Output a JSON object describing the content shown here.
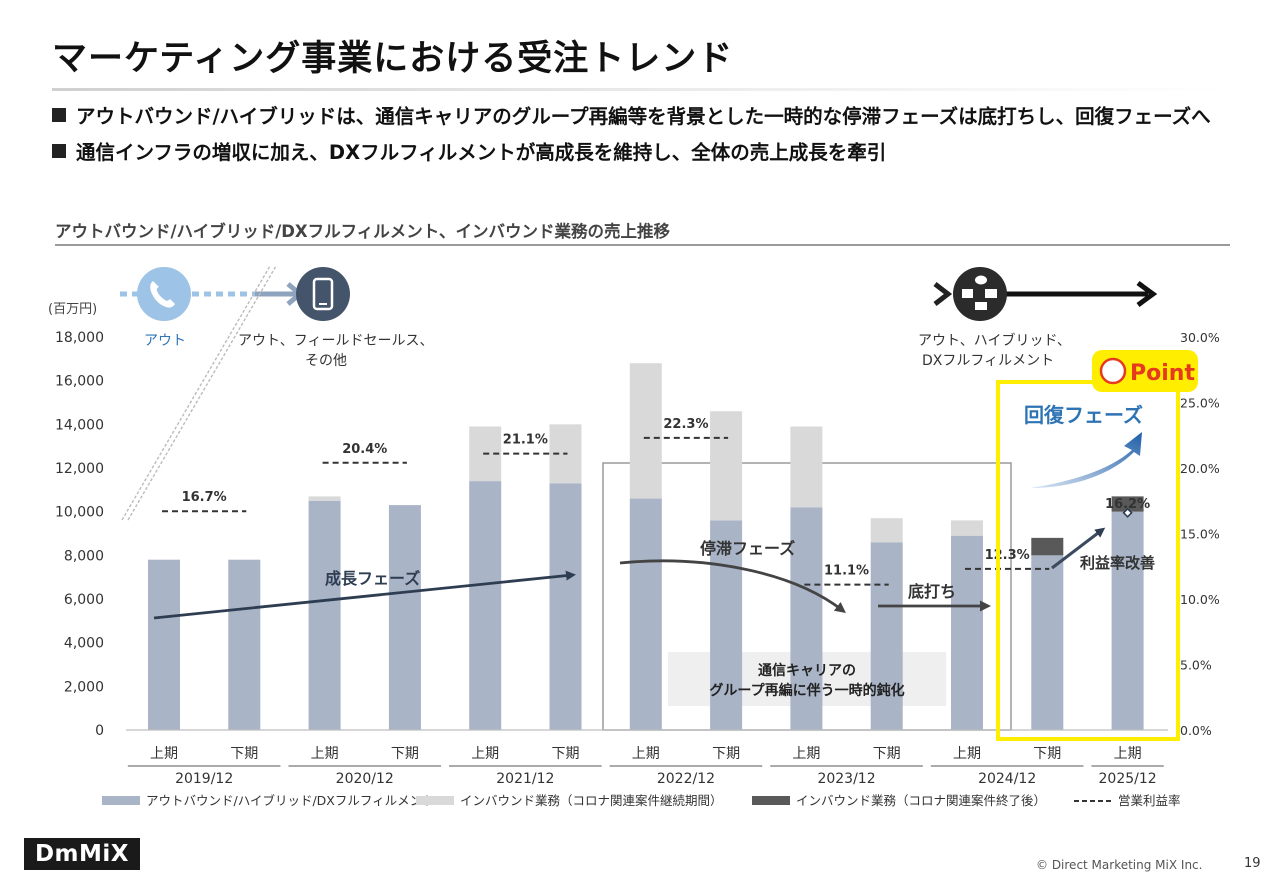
{
  "slide": {
    "title": "マーケティング事業における受注トレンド",
    "bullets": [
      "アウトバウンド/ハイブリッドは、通信キャリアのグループ再編等を背景とした一時的な停滞フェーズは底打ちし、回復フェーズへ",
      "通信インフラの増収に加え、DXフルフィルメントが高成長を維持し、全体の売上成長を牽引"
    ],
    "chart_heading": "アウトバウンド/ハイブリッド/DXフルフィルメント、インバウンド業務の売上推移",
    "logo_text": "DmMiX",
    "copyright": "© Direct Marketing MiX Inc.",
    "page_number": "19"
  },
  "timeline": {
    "labels": [
      "アウト",
      "アウト、フィールドセールス、\nその他",
      "アウト、ハイブリッド、\nDXフルフィルメント"
    ],
    "icons": [
      "phone-icon",
      "smartphone-icon",
      "omnichannel-icon"
    ]
  },
  "annotations": {
    "growth": "成長フェーズ",
    "stagnation": "停滞フェーズ",
    "bottom": "底打ち",
    "recovery": "回復フェーズ",
    "margin_improve": "利益率改善",
    "point": "Point",
    "note": "通信キャリアの\nグループ再編に伴う一時的鈍化"
  },
  "colors": {
    "outbound": "#a9b4c7",
    "inbound_covid": "#d9d9d9",
    "inbound_post": "#595959",
    "highlight": "#ffee00",
    "recovery_text": "#2e74b5",
    "arrow_dark": "#3b4a5e"
  },
  "chart_data": {
    "type": "bar",
    "stacked": true,
    "y_unit": "(百万円)",
    "ylim": [
      0,
      18000
    ],
    "y_ticks": [
      "0",
      "2,000",
      "4,000",
      "6,000",
      "8,000",
      "10,000",
      "12,000",
      "14,000",
      "16,000",
      "18,000"
    ],
    "y2lim": [
      0,
      30
    ],
    "y2_ticks": [
      "0.0%",
      "5.0%",
      "10.0%",
      "15.0%",
      "20.0%",
      "25.0%",
      "30.0%"
    ],
    "categories": [
      "上期",
      "下期",
      "上期",
      "下期",
      "上期",
      "下期",
      "上期",
      "下期",
      "上期",
      "下期",
      "上期",
      "下期",
      "上期"
    ],
    "groups": [
      {
        "label": "2019/12",
        "count": 2
      },
      {
        "label": "2020/12",
        "count": 2
      },
      {
        "label": "2021/12",
        "count": 2
      },
      {
        "label": "2022/12",
        "count": 2
      },
      {
        "label": "2023/12",
        "count": 2
      },
      {
        "label": "2024/12",
        "count": 2
      },
      {
        "label": "2025/12",
        "count": 1
      }
    ],
    "series": [
      {
        "name": "アウトバウンド/ハイブリッド/DXフルフィルメント",
        "values": [
          7800,
          7800,
          10500,
          10300,
          11400,
          11300,
          10600,
          9600,
          10200,
          8600,
          8900,
          8000,
          10000
        ]
      },
      {
        "name": "インバウンド業務（コロナ関連案件継続期間）",
        "values": [
          0,
          0,
          200,
          0,
          2500,
          2700,
          6200,
          5000,
          3700,
          1100,
          700,
          0,
          0
        ]
      },
      {
        "name": "インバウンド業務（コロナ関連案件終了後）",
        "values": [
          0,
          0,
          0,
          0,
          0,
          0,
          0,
          0,
          0,
          0,
          0,
          800,
          700
        ]
      }
    ],
    "operating_margin": {
      "name": "営業利益率",
      "values": [
        {
          "start": 0,
          "end": 1,
          "value": 16.7,
          "label": "16.7%"
        },
        {
          "start": 2,
          "end": 3,
          "value": 20.4,
          "label": "20.4%"
        },
        {
          "start": 4,
          "end": 5,
          "value": 21.1,
          "label": "21.1%"
        },
        {
          "start": 6,
          "end": 7,
          "value": 22.3,
          "label": "22.3%"
        },
        {
          "start": 8,
          "end": 9,
          "value": 11.1,
          "label": "11.1%"
        },
        {
          "start": 10,
          "end": 11,
          "value": 12.3,
          "label": "12.3%"
        },
        {
          "start": 12,
          "end": 12,
          "value": 16.2,
          "label": "16.2%"
        }
      ]
    }
  }
}
